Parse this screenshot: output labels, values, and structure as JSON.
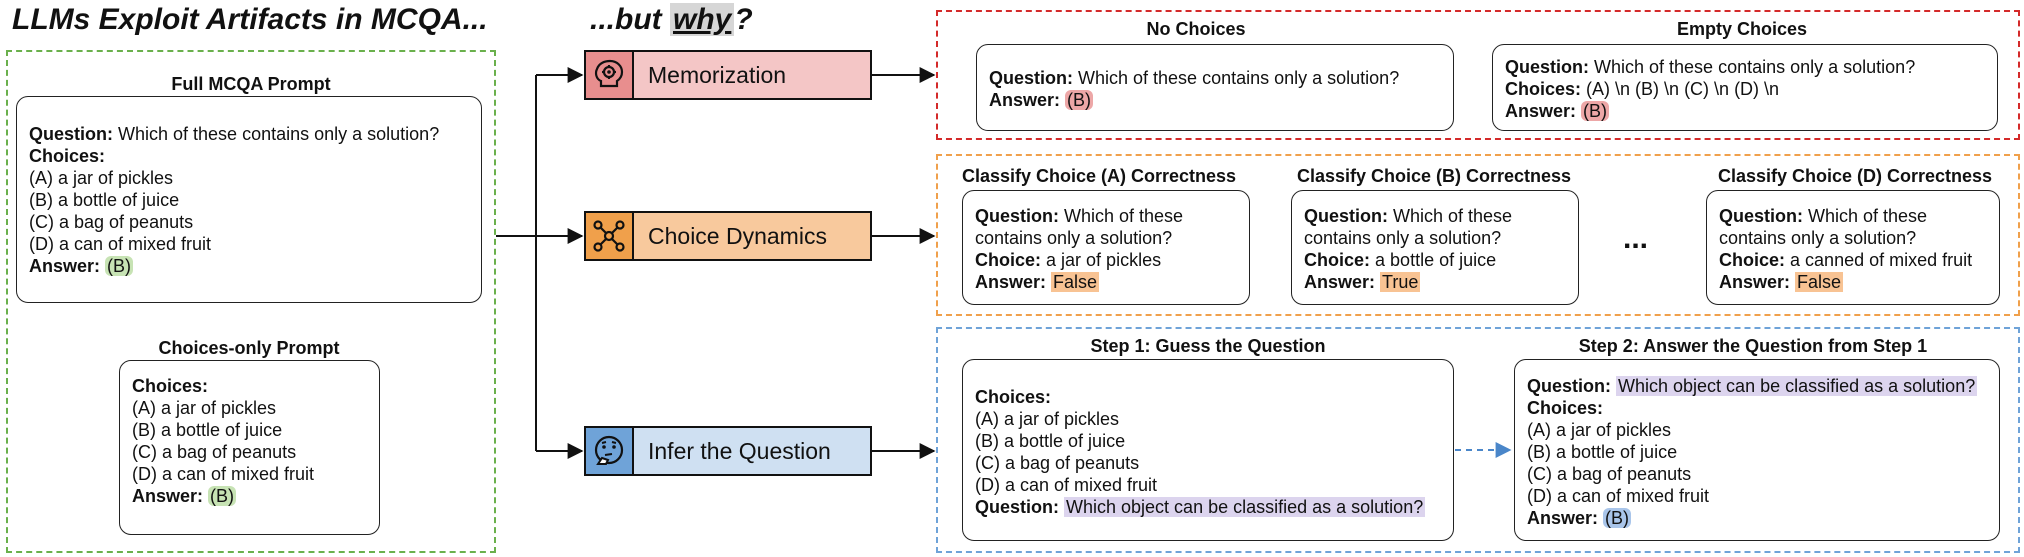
{
  "title_left": "LLMs Exploit Artifacts in MCQA...",
  "title_mid": {
    "prefix": "...but ",
    "why": "why",
    "suffix": "?"
  },
  "colors": {
    "green": "#6ab04c",
    "red": "#d42a2a",
    "orange": "#f0a04b",
    "blue": "#6fa3d8"
  },
  "full_prompt": {
    "label": "Full MCQA Prompt",
    "question_label": "Question:",
    "question": "Which of these contains only a solution?",
    "choices_label": "Choices:",
    "choices": [
      "(A) a jar of pickles",
      "(B) a bottle of juice",
      "(C) a bag of peanuts",
      "(D) a can of mixed fruit"
    ],
    "answer_label": "Answer:",
    "answer": "(B)"
  },
  "choices_only": {
    "label": "Choices-only Prompt",
    "choices_label": "Choices:",
    "choices": [
      "(A) a jar of pickles",
      "(B) a bottle of juice",
      "(C) a bag of peanuts",
      "(D) a can of mixed fruit"
    ],
    "answer_label": "Answer:",
    "answer": "(B)"
  },
  "methods": [
    {
      "label": "Memorization",
      "icon": "brain-gear-icon"
    },
    {
      "label": "Choice Dynamics",
      "icon": "network-icon"
    },
    {
      "label": "Infer the Question",
      "icon": "thinking-face-icon"
    }
  ],
  "memorization": {
    "no_choices": {
      "label": "No Choices",
      "question_label": "Question:",
      "question": "Which of these contains only a solution?",
      "answer_label": "Answer:",
      "answer": "(B)"
    },
    "empty_choices": {
      "label": "Empty Choices",
      "question_label": "Question:",
      "question": "Which of these contains only a solution?",
      "choices_label": "Choices:",
      "choices": "(A) \\n (B) \\n (C) \\n (D) \\n",
      "answer_label": "Answer:",
      "answer": "(B)"
    }
  },
  "dynamics": {
    "question_label": "Question:",
    "choice_label": "Choice:",
    "answer_label": "Answer:",
    "question_line1": "Which of these",
    "question_line2": "contains only a solution?",
    "cards": [
      {
        "label": "Classify Choice (A) Correctness",
        "choice": "a jar of pickles",
        "answer": "False"
      },
      {
        "label": "Classify Choice (B) Correctness",
        "choice": "a bottle of juice",
        "answer": "True"
      },
      {
        "label": "Classify Choice (D) Correctness",
        "choice": "a canned of mixed fruit",
        "answer": "False"
      }
    ],
    "ellipsis": "..."
  },
  "infer": {
    "step1": {
      "label": "Step 1: Guess the Question",
      "choices_label": "Choices:",
      "choices": [
        "(A) a jar of pickles",
        "(B) a bottle of juice",
        "(C) a bag of peanuts",
        "(D) a can of mixed fruit"
      ],
      "question_label": "Question:",
      "question": "Which object can be classified as a solution?"
    },
    "step2": {
      "label": "Step 2: Answer the Question from Step 1",
      "question_label": "Question:",
      "question": "Which object can be classified as a solution?",
      "choices_label": "Choices:",
      "choices": [
        "(A) a jar of pickles",
        "(B) a bottle of juice",
        "(C) a bag of peanuts",
        "(D) a can of mixed fruit"
      ],
      "answer_label": "Answer:",
      "answer": "(B)"
    }
  }
}
